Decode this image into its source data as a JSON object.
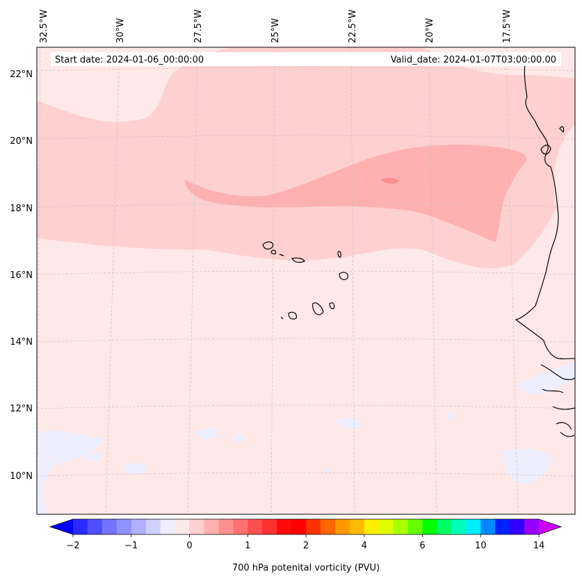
{
  "header": {
    "start_date": "Start date: 2024-01-06_00:00:00",
    "valid_date": "Valid_date: 2024-01-07T03:00:00.00"
  },
  "lon_labels": [
    "32.5°W",
    "30°W",
    "27.5°W",
    "25°W",
    "22.5°W",
    "20°W",
    "17.5°W"
  ],
  "lat_labels": [
    "22°N",
    "20°N",
    "18°N",
    "16°N",
    "14°N",
    "12°N",
    "10°N"
  ],
  "colorbar": {
    "tick_labels": [
      "−2",
      "−1",
      "0",
      "1",
      "2",
      "4",
      "6",
      "10",
      "14"
    ],
    "label": "700 hPa potenital vorticity (PVU)",
    "colors": [
      "#0000ff",
      "#2a2aff",
      "#4f4fff",
      "#7474ff",
      "#9090ff",
      "#b0b0ff",
      "#d0d0ff",
      "#eeeeff",
      "#ffe8e8",
      "#ffd0d0",
      "#ffb0b0",
      "#ff9090",
      "#ff7070",
      "#ff5050",
      "#ff3030",
      "#ff0a0a",
      "#ff0000",
      "#ff3300",
      "#ff6600",
      "#ff9900",
      "#ffbb00",
      "#ffee00",
      "#ddff00",
      "#aaff00",
      "#66ff00",
      "#00ff00",
      "#00ff66",
      "#00ffbb",
      "#00eeff",
      "#0088ff",
      "#0022ff",
      "#3300ff",
      "#9900ff",
      "#cc00ff"
    ]
  },
  "field_colors": {
    "background": "#ffe8e8",
    "level1": "#ffd0d0",
    "level2": "#ffb0b0",
    "level3": "#ff9090",
    "negative": "#eeeeff",
    "coast": "#000000"
  }
}
